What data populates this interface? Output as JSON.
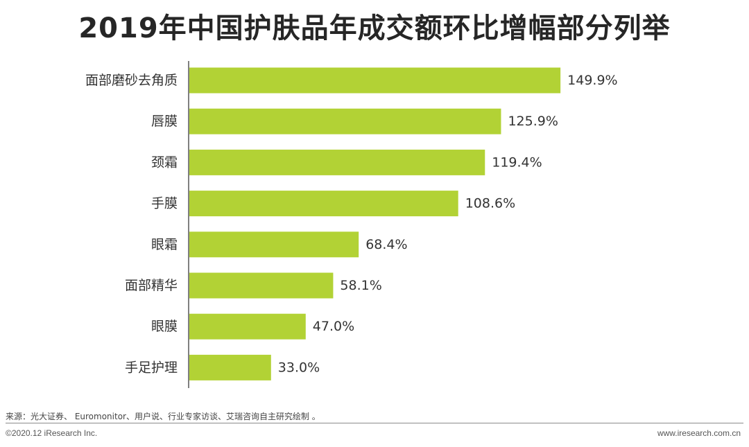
{
  "chart_data": {
    "type": "bar",
    "orientation": "horizontal",
    "title": "2019年中国护肤品年成交额环比增幅部分列举",
    "categories": [
      "面部磨砂去角质",
      "唇膜",
      "颈霜",
      "手膜",
      "眼霜",
      "面部精华",
      "眼膜",
      "手足护理"
    ],
    "values": [
      149.9,
      125.9,
      119.4,
      108.6,
      68.4,
      58.1,
      47.0,
      33.0
    ],
    "value_labels": [
      "149.9%",
      "125.9%",
      "119.4%",
      "108.6%",
      "68.4%",
      "58.1%",
      "47.0%",
      "33.0%"
    ],
    "unit": "%",
    "xlim": [
      0,
      150
    ],
    "grid": false,
    "legend": "none",
    "bar_color": "#b2d235"
  },
  "footer": {
    "source": "来源：光大证券、 Euromonitor、用户说、行业专家访谈、艾瑞咨询自主研究绘制 。",
    "copyright": "©2020.12 iResearch Inc.",
    "website": "www.iresearch.com.cn"
  }
}
